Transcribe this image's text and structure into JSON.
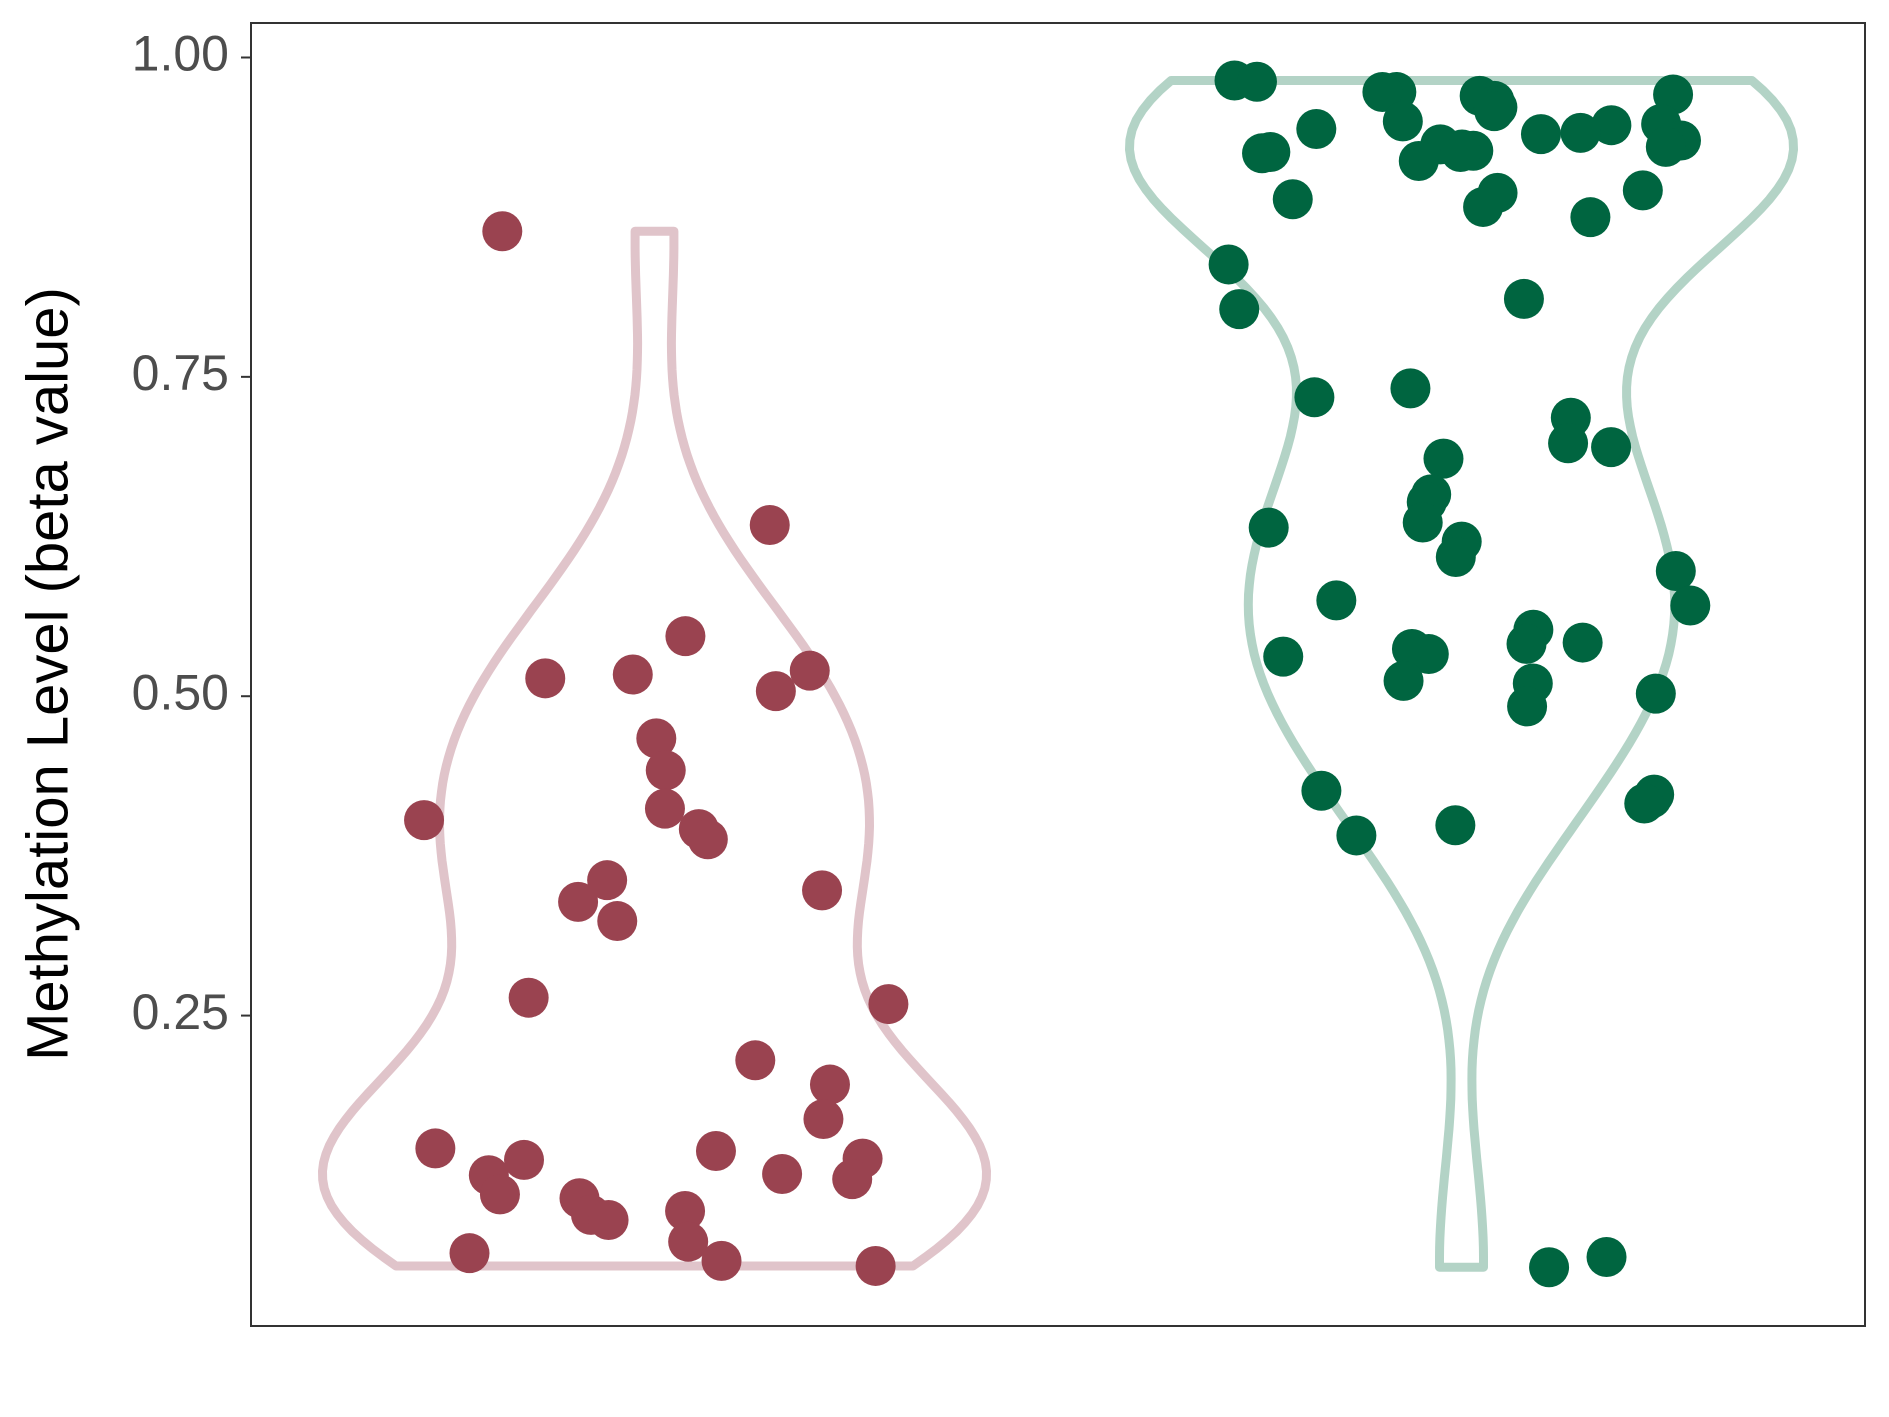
{
  "chart_data": {
    "type": "violin",
    "y_label": "Methylation Level (beta value)",
    "categories": [
      null,
      null
    ],
    "ylim": [
      0.007,
      1.027
    ],
    "yticks": [
      {
        "value": 0.25,
        "label": "0.25"
      },
      {
        "value": 0.5,
        "label": "0.50"
      },
      {
        "value": 0.75,
        "label": "0.75"
      },
      {
        "value": 1,
        "label": "1.00"
      }
    ],
    "series": [
      {
        "color": "#9a4350",
        "violin_color": "#e0c4ca",
        "values": [
          0.864,
          0.634,
          0.547,
          0.517,
          0.514,
          0.52,
          0.504,
          0.467,
          0.442,
          0.412,
          0.403,
          0.396,
          0.388,
          0.356,
          0.348,
          0.339,
          0.324,
          0.264,
          0.259,
          0.215,
          0.196,
          0.169,
          0.146,
          0.144,
          0.138,
          0.137,
          0.126,
          0.125,
          0.122,
          0.11,
          0.107,
          0.097,
          0.094,
          0.09,
          0.073,
          0.064,
          0.058,
          0.054
        ]
      },
      {
        "color": "#006540",
        "violin_color": "#b3d3c6",
        "values": [
          0.982,
          0.981,
          0.973,
          0.973,
          0.971,
          0.97,
          0.966,
          0.962,
          0.961,
          0.958,
          0.95,
          0.948,
          0.947,
          0.944,
          0.941,
          0.94,
          0.935,
          0.932,
          0.93,
          0.928,
          0.927,
          0.926,
          0.926,
          0.925,
          0.919,
          0.896,
          0.894,
          0.889,
          0.883,
          0.875,
          0.838,
          0.811,
          0.803,
          0.741,
          0.734,
          0.718,
          0.698,
          0.695,
          0.686,
          0.658,
          0.652,
          0.636,
          0.632,
          0.621,
          0.609,
          0.598,
          0.575,
          0.571,
          0.552,
          0.542,
          0.541,
          0.537,
          0.533,
          0.531,
          0.512,
          0.51,
          0.502,
          0.492,
          0.426,
          0.423,
          0.42,
          0.416,
          0.399,
          0.391,
          0.061,
          0.053
        ]
      }
    ]
  }
}
